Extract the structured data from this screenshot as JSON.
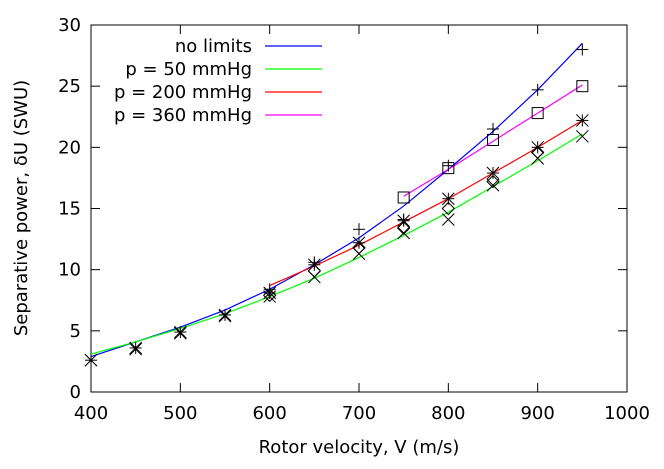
{
  "chart_data": {
    "type": "line",
    "title": "",
    "xlabel": "Rotor velocity, V (m/s)",
    "ylabel": "Separative power, δU (SWU)",
    "xlim": [
      400,
      1000
    ],
    "ylim": [
      0,
      30
    ],
    "xticks": [
      400,
      500,
      600,
      700,
      800,
      900,
      1000
    ],
    "yticks": [
      0,
      5,
      10,
      15,
      20,
      25,
      30
    ],
    "grid": false,
    "legend_position": "top-left",
    "series": [
      {
        "name": "no limits",
        "color": "#0000ff",
        "x": [
          400,
          450,
          500,
          550,
          600,
          650,
          700,
          750,
          800,
          850,
          900,
          950
        ],
        "values": [
          2.9,
          4.1,
          5.3,
          6.7,
          8.4,
          10.4,
          12.6,
          15.2,
          18.2,
          21.3,
          24.7,
          28.5
        ]
      },
      {
        "name": "p = 50 mmHg",
        "color": "#00ff00",
        "x": [
          400,
          450,
          500,
          550,
          600,
          650,
          700,
          750,
          800,
          850,
          900,
          950
        ],
        "values": [
          3.1,
          4.1,
          5.2,
          6.4,
          7.8,
          9.3,
          11.0,
          12.8,
          14.7,
          16.8,
          18.9,
          21.1
        ]
      },
      {
        "name": "p = 200 mmHg",
        "color": "#ff0000",
        "x": [
          600,
          650,
          700,
          750,
          800,
          850,
          900,
          950
        ],
        "values": [
          8.7,
          10.3,
          12.0,
          13.9,
          15.8,
          17.9,
          20.0,
          22.2
        ]
      },
      {
        "name": "p = 360 mmHg",
        "color": "#ff00ff",
        "x": [
          750,
          800,
          850,
          900,
          950
        ],
        "values": [
          16.0,
          18.2,
          20.5,
          22.8,
          25.1
        ]
      }
    ],
    "markers": [
      {
        "symbol": "plus",
        "x": [
          600,
          650,
          700,
          750,
          800,
          850,
          900,
          950
        ],
        "values": [
          8.4,
          10.6,
          13.3,
          14.1,
          18.5,
          21.5,
          24.7,
          28.0
        ]
      },
      {
        "symbol": "cross",
        "x": [
          400,
          450,
          500,
          550,
          600,
          650,
          700,
          750,
          800,
          850,
          900,
          950
        ],
        "values": [
          2.6,
          3.5,
          4.8,
          6.2,
          7.8,
          9.4,
          11.3,
          13.0,
          14.1,
          16.9,
          19.1,
          20.9
        ]
      },
      {
        "symbol": "star",
        "x": [
          400,
          450,
          500,
          550,
          600,
          650,
          700,
          750,
          800,
          850,
          900,
          950
        ],
        "values": [
          2.6,
          3.6,
          4.9,
          6.3,
          8.1,
          10.4,
          12.2,
          14.0,
          15.8,
          17.9,
          20.0,
          22.2
        ]
      },
      {
        "symbol": "diamond",
        "x": [
          600,
          650,
          700,
          750,
          800,
          850,
          900
        ],
        "values": [
          7.9,
          9.9,
          11.8,
          13.4,
          15.0,
          17.2,
          19.6
        ]
      },
      {
        "symbol": "square",
        "x": [
          750,
          800,
          850,
          900,
          950
        ],
        "values": [
          15.9,
          18.3,
          20.6,
          22.8,
          25.0
        ]
      }
    ]
  }
}
